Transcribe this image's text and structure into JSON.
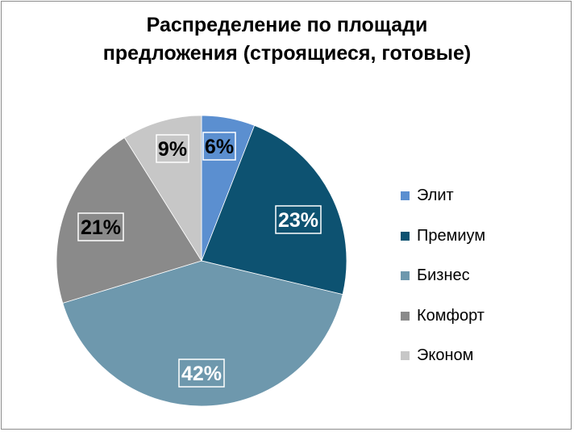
{
  "chart_data": {
    "type": "pie",
    "title": [
      "Распределение по площади",
      "предложения (строящиеся, готовые)"
    ],
    "categories": [
      "Элит",
      "Премиум",
      "Бизнес",
      "Комфорт",
      "Эконом"
    ],
    "values": [
      6,
      23,
      42,
      21,
      9
    ],
    "data_labels": [
      "6%",
      "23%",
      "42%",
      "21%",
      "9%"
    ],
    "colors": [
      "#5b8fd0",
      "#0d5271",
      "#6e98ad",
      "#8a8a8a",
      "#c7c7c7"
    ],
    "start_angle_deg": 0,
    "direction": "clockwise",
    "legend_position": "right"
  }
}
